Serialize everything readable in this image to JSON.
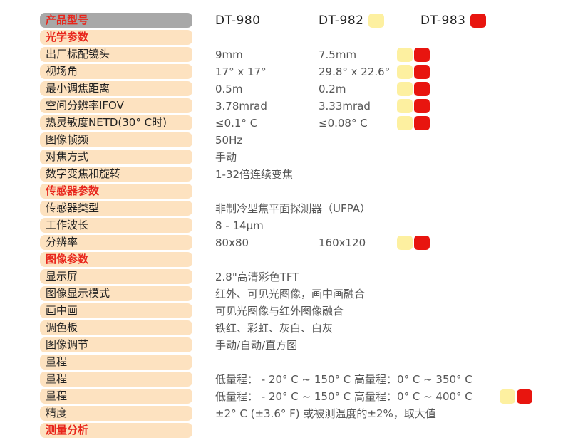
{
  "header": {
    "label": "产品型号",
    "models": [
      "DT-980",
      "DT-982",
      "DT-983"
    ]
  },
  "colors": {
    "model_982_marker": "#fdf0a0",
    "model_983_marker": "#e8150f",
    "section_text": "#e8261c",
    "row_pill": "#fde2c0"
  },
  "rows": [
    {
      "kind": "section",
      "label": "光学参数"
    },
    {
      "kind": "spec",
      "label": "出厂标配镜头",
      "v1": "9mm",
      "v2": "7.5mm",
      "marks": [
        "yellow",
        "red"
      ]
    },
    {
      "kind": "spec",
      "label": "视场角",
      "v1": "17° x 17°",
      "v2": "29.8° x 22.6°",
      "marks": [
        "yellow",
        "red"
      ]
    },
    {
      "kind": "spec",
      "label": "最小调焦距离",
      "v1": "0.5m",
      "v2": "0.2m",
      "marks": [
        "yellow",
        "red"
      ]
    },
    {
      "kind": "spec",
      "label": "空间分辨率IFOV",
      "v1": "3.78mrad",
      "v2": "3.33mrad",
      "marks": [
        "yellow",
        "red"
      ]
    },
    {
      "kind": "spec",
      "label": "热灵敏度NETD(30° C时)",
      "v1": "≤0.1° C",
      "v2": "≤0.08° C",
      "marks": [
        "yellow",
        "red"
      ]
    },
    {
      "kind": "spec",
      "label": "图像帧频",
      "v1": "50Hz"
    },
    {
      "kind": "spec",
      "label": "对焦方式",
      "v1": "手动"
    },
    {
      "kind": "spec",
      "label": "数字变焦和旋转",
      "v1": "1-32倍连续变焦"
    },
    {
      "kind": "section",
      "label": "传感器参数"
    },
    {
      "kind": "spec",
      "label": "传感器类型",
      "v1": "非制冷型焦平面探测器（UFPA）"
    },
    {
      "kind": "spec",
      "label": "工作波长",
      "v1": "8 - 14μm"
    },
    {
      "kind": "spec",
      "label": "分辨率",
      "v1": "80x80",
      "v2": "160x120",
      "marks": [
        "yellow",
        "red"
      ]
    },
    {
      "kind": "section",
      "label": "图像参数"
    },
    {
      "kind": "spec",
      "label": "显示屏",
      "v1": "2.8\"高清彩色TFT"
    },
    {
      "kind": "spec",
      "label": "图像显示模式",
      "v1": "红外、可见光图像，画中画融合"
    },
    {
      "kind": "spec",
      "label": "画中画",
      "v1": "可见光图像与红外图像融合"
    },
    {
      "kind": "spec",
      "label": "调色板",
      "v1": "铁红、彩虹、灰白、白灰"
    },
    {
      "kind": "spec",
      "label": "图像调节",
      "v1": "手动/自动/直方图"
    },
    {
      "kind": "spec",
      "label": "量程"
    },
    {
      "kind": "spec",
      "label": "量程",
      "v1": "低量程： - 20° C ~ 150° C 高量程：0° C ~ 350° C"
    },
    {
      "kind": "spec",
      "label": "量程",
      "v1": "低量程： - 20° C ~ 150° C 高量程：0° C ~ 400° C",
      "marks_inline": [
        "yellow",
        "red"
      ]
    },
    {
      "kind": "spec",
      "label": "精度",
      "v1": "±2° C (±3.6° F) 或被测温度的±2%，取大值"
    },
    {
      "kind": "section",
      "label": "测量分析"
    }
  ]
}
